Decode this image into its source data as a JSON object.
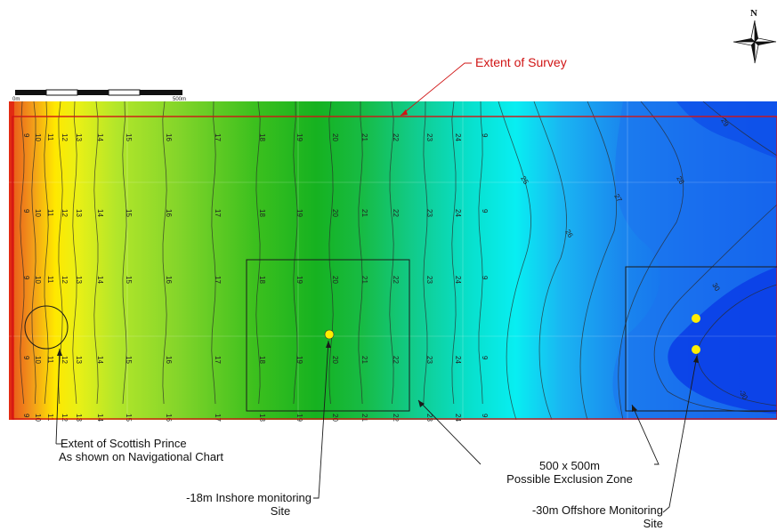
{
  "north_label": "N",
  "scale_bar": {
    "start_label": "0m",
    "end_label": "500m"
  },
  "annotations": {
    "extent_survey": "Extent of Survey",
    "scottish_prince_line1": "Extent of Scottish Prince",
    "scottish_prince_line2": "As shown on Navigational Chart",
    "exclusion_line1": "500 x 500m",
    "exclusion_line2": "Possible Exclusion Zone",
    "inshore_line1": "-18m Inshore monitoring",
    "inshore_line2": "Site",
    "offshore_line1": "-30m Offshore Monitoring",
    "offshore_line2": "Site"
  },
  "depth_labels": {
    "left": [
      "9",
      "10",
      "11",
      "12",
      "13"
    ],
    "mid": [
      "14",
      "15",
      "16",
      "17",
      "18",
      "19",
      "20",
      "21",
      "22",
      "23",
      "24"
    ],
    "right": [
      "25",
      "26",
      "27",
      "28",
      "29",
      "30",
      "-30"
    ]
  },
  "colors": {
    "survey_outline": "#d01414",
    "site_marker": "#ffee00",
    "exclusion_box": "#1a1a1a",
    "deep_water": "#0a3de6",
    "shallow_water": "#f07a10"
  },
  "sites": [
    {
      "name": "-18m Inshore monitoring Site",
      "depth_m": -18
    },
    {
      "name": "-30m Offshore Monitoring Site A",
      "depth_m": -30
    },
    {
      "name": "-30m Offshore Monitoring Site B",
      "depth_m": -30
    }
  ]
}
